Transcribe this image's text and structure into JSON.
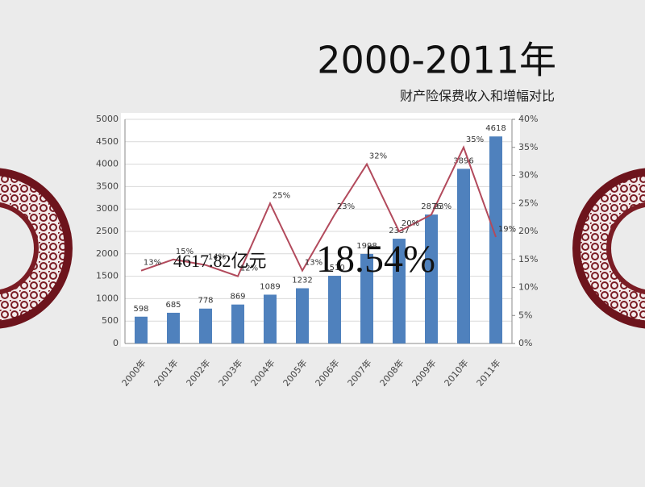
{
  "chart_data": {
    "type": "bar",
    "title": "2000-2011年",
    "subtitle": "财产险保费收入和增幅对比",
    "annotations": [
      "4617.82亿元",
      "18.54%"
    ],
    "categories": [
      "2000年",
      "2001年",
      "2002年",
      "2003年",
      "2004年",
      "2005年",
      "2006年",
      "2007年",
      "2008年",
      "2009年",
      "2010年",
      "2011年"
    ],
    "series": [
      {
        "type": "bar",
        "color": "#4f81bd",
        "values": [
          598,
          685,
          778,
          869,
          1089,
          1232,
          1510,
          1998,
          2337,
          2876,
          3896,
          4618
        ]
      },
      {
        "type": "line",
        "axis": "y2",
        "color": "#b24a5c",
        "values": [
          13,
          15,
          14,
          12,
          25,
          13,
          23,
          32,
          20,
          23,
          35,
          19
        ],
        "value_labels": [
          "13%",
          "15%",
          "14%",
          "12%",
          "25%",
          "13%",
          "23%",
          "32%",
          "20%",
          "23%",
          "35%",
          "19%"
        ]
      }
    ],
    "ylim": [
      0,
      5000
    ],
    "yticks": [
      0,
      500,
      1000,
      1500,
      2000,
      2500,
      3000,
      3500,
      4000,
      4500,
      5000
    ],
    "y2lim": [
      0,
      40
    ],
    "y2ticks": [
      {
        "value": 0,
        "label": "0%"
      },
      {
        "value": 5,
        "label": "5%"
      },
      {
        "value": 10,
        "label": "10%"
      },
      {
        "value": 15,
        "label": "15%"
      },
      {
        "value": 20,
        "label": "20%"
      },
      {
        "value": 25,
        "label": "25%"
      },
      {
        "value": 30,
        "label": "30%"
      },
      {
        "value": 35,
        "label": "35%"
      },
      {
        "value": 40,
        "label": "40%"
      }
    ],
    "grid": true
  }
}
